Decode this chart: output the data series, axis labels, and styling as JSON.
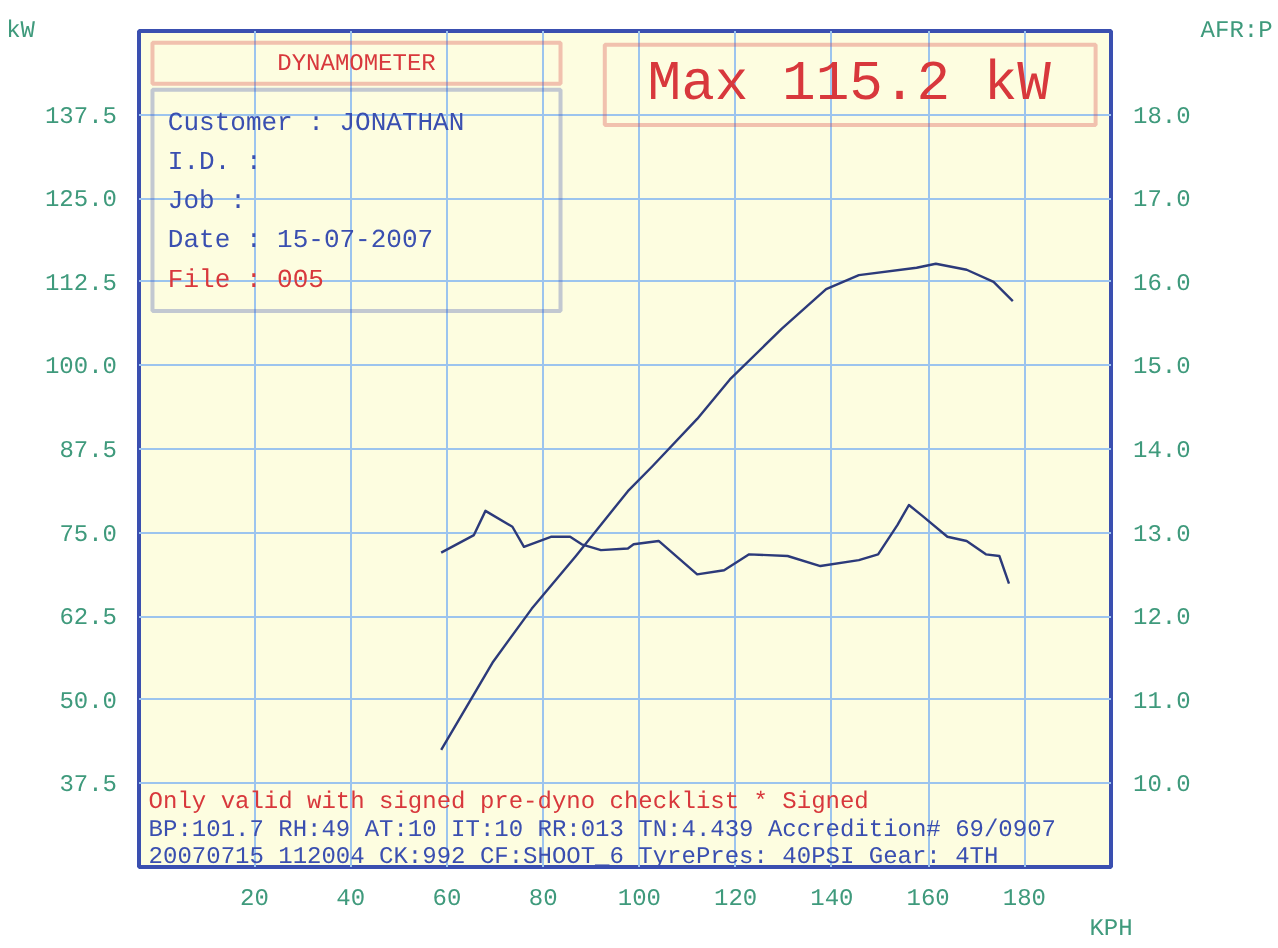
{
  "chart_data": {
    "type": "line",
    "title": "Max 115.2 kW",
    "xlabel": "KPH",
    "ylabel": "kW",
    "y2label": "AFR:P",
    "xlim": [
      -4,
      198
    ],
    "ylim": [
      25,
      150
    ],
    "y2lim": [
      9,
      19
    ],
    "xticks": [
      20,
      40,
      60,
      80,
      100,
      120,
      140,
      160,
      180
    ],
    "yticks": [
      {
        "value": 37.5,
        "label": "37.5"
      },
      {
        "value": 50,
        "label": "50.0"
      },
      {
        "value": 62.5,
        "label": "62.5"
      },
      {
        "value": 75,
        "label": "75.0"
      },
      {
        "value": 87.5,
        "label": "87.5"
      },
      {
        "value": 100,
        "label": "100.0"
      },
      {
        "value": 112.5,
        "label": "112.5"
      },
      {
        "value": 125,
        "label": "125.0"
      },
      {
        "value": 137.5,
        "label": "137.5"
      }
    ],
    "y2ticks": [
      {
        "value": 10,
        "label": "10.0"
      },
      {
        "value": 11,
        "label": "11.0"
      },
      {
        "value": 12,
        "label": "12.0"
      },
      {
        "value": 13,
        "label": "13.0"
      },
      {
        "value": 14,
        "label": "14.0"
      },
      {
        "value": 15,
        "label": "15.0"
      },
      {
        "value": 16,
        "label": "16.0"
      },
      {
        "value": 17,
        "label": "17.0"
      },
      {
        "value": 18,
        "label": "18.0"
      }
    ],
    "grid": true,
    "series": [
      {
        "color": "#2c3a7a",
        "x": [
          58.8,
          69.6,
          77.6,
          86.8,
          97.6,
          102.8,
          112,
          118.8,
          129.6,
          138.8,
          145.6,
          157.6,
          161.6,
          168,
          173.6,
          177.6
        ],
        "values": [
          42.5,
          55.7,
          63.6,
          71.5,
          81.2,
          85,
          92,
          97.9,
          105.5,
          111.4,
          113.5,
          114.6,
          115.2,
          114.3,
          112.5,
          109.6
        ]
      },
      {
        "color": "#2c3a7a",
        "axis": "y2",
        "x": [
          58.8,
          65.6,
          68,
          73.6,
          76,
          81.6,
          85.6,
          88,
          92,
          97.6,
          98.8,
          104,
          112,
          117.6,
          122.8,
          130.8,
          137.6,
          145.6,
          149.6,
          153.6,
          156,
          158.8,
          164,
          168,
          172,
          174.8,
          176.8
        ],
        "values": [
          12.76,
          12.97,
          13.26,
          13.07,
          12.83,
          12.95,
          12.95,
          12.86,
          12.79,
          12.81,
          12.86,
          12.9,
          12.5,
          12.55,
          12.74,
          12.72,
          12.6,
          12.67,
          12.74,
          13.09,
          13.33,
          13.2,
          12.95,
          12.9,
          12.74,
          12.72,
          12.39
        ]
      }
    ],
    "annotations": [
      "DYNAMOMETER",
      "Customer : JONATHAN",
      "I.D.     :",
      "Job      :",
      "Date     : 15-07-2007",
      "File     :         005",
      "Only valid with signed pre-dyno checklist *  Signed",
      "BP:101.7 RH:49 AT:10 IT:10  RR:013 TN:4.439  Accredition# 69/0907",
      "20070715 112004 CK:992 CF:SHOOT_6  TyrePres: 40PSI   Gear: 4TH"
    ]
  }
}
